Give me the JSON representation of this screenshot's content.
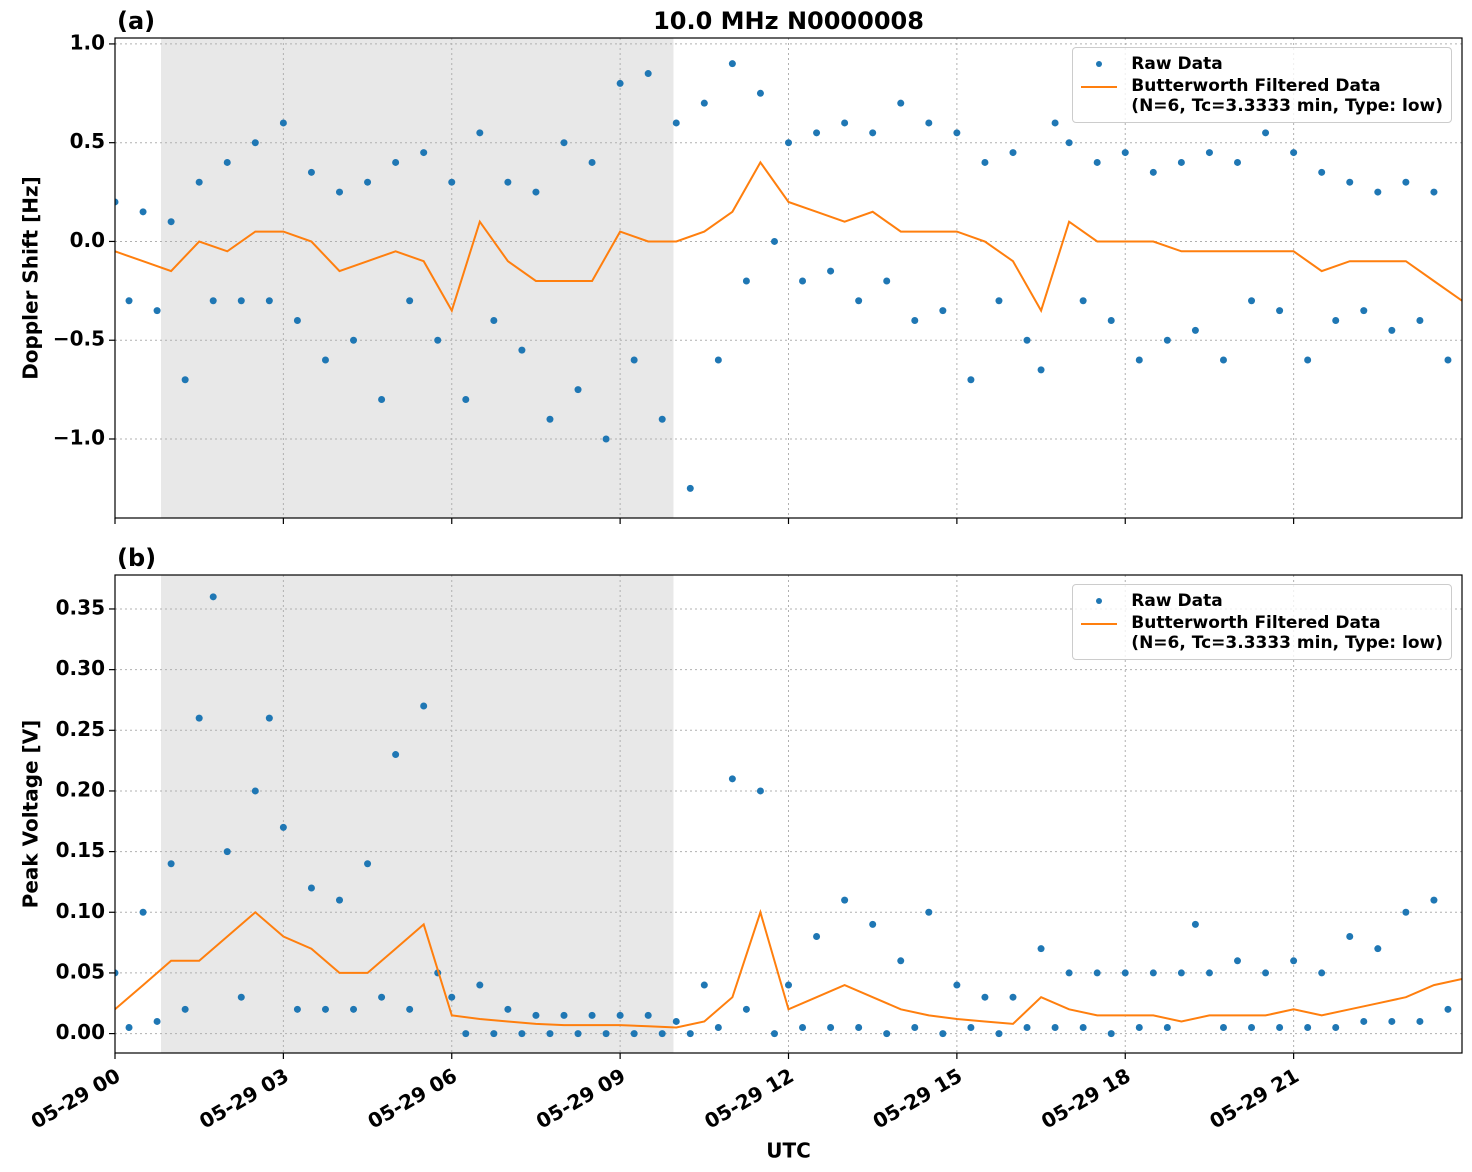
{
  "chart_data": [
    {
      "type": "timeseries",
      "title": "10.0 MHz N0000008",
      "panel_label": "(a)",
      "y_label": "Doppler Shift [Hz]",
      "xlim": [
        0,
        24
      ],
      "ylim": [
        -1.4,
        1.03
      ],
      "xticks": [
        0,
        3,
        6,
        9,
        12,
        15,
        18,
        21
      ],
      "show_xtick_labels": false,
      "yticks": [
        {
          "value": -1.0,
          "label": "−1.0"
        },
        {
          "value": -0.5,
          "label": "−0.5"
        },
        {
          "value": 0,
          "label": "0.0"
        },
        0.5,
        {
          "value": 1.0,
          "label": "1.0"
        }
      ],
      "grid": true,
      "legend": "upper right",
      "shade": [
        0.82,
        9.95
      ],
      "shade_color": "#e8e8e8",
      "series": [
        {
          "name": "Raw Data",
          "kind": "scatter",
          "color": "#1f77b4",
          "x": [
            0,
            0.25,
            0.5,
            0.75,
            1,
            1.25,
            1.5,
            1.75,
            2,
            2.25,
            2.5,
            2.75,
            3,
            3.25,
            3.5,
            3.75,
            4,
            4.25,
            4.5,
            4.75,
            5,
            5.25,
            5.5,
            5.75,
            6,
            6.25,
            6.5,
            6.75,
            7,
            7.25,
            7.5,
            7.75,
            8,
            8.25,
            8.5,
            8.75,
            9,
            9.25,
            9.5,
            9.75,
            10,
            10.25,
            10.5,
            10.75,
            11,
            11.25,
            11.5,
            11.75,
            12,
            12.25,
            12.5,
            12.75,
            13,
            13.25,
            13.5,
            13.75,
            14,
            14.25,
            14.5,
            14.75,
            15,
            15.25,
            15.5,
            15.75,
            16,
            16.25,
            16.5,
            16.75,
            17,
            17.25,
            17.5,
            17.75,
            18,
            18.25,
            18.5,
            18.75,
            19,
            19.25,
            19.5,
            19.75,
            20,
            20.25,
            20.5,
            20.75,
            21,
            21.25,
            21.5,
            21.75,
            22,
            22.25,
            22.5,
            22.75,
            23,
            23.25,
            23.5,
            23.75
          ],
          "values": [
            0.2,
            -0.3,
            0.15,
            -0.35,
            0.1,
            -0.7,
            0.3,
            -0.3,
            0.4,
            -0.3,
            0.5,
            -0.3,
            0.6,
            -0.4,
            0.35,
            -0.6,
            0.25,
            -0.5,
            0.3,
            -0.8,
            0.4,
            -0.3,
            0.45,
            -0.5,
            0.3,
            -0.8,
            0.55,
            -0.4,
            0.3,
            -0.55,
            0.25,
            -0.9,
            0.5,
            -0.75,
            0.4,
            -1.0,
            0.8,
            -0.6,
            0.85,
            -0.9,
            0.6,
            -1.25,
            0.7,
            -0.6,
            0.9,
            -0.2,
            0.75,
            0.0,
            0.5,
            -0.2,
            0.55,
            -0.15,
            0.6,
            -0.3,
            0.55,
            -0.2,
            0.7,
            -0.4,
            0.6,
            -0.35,
            0.55,
            -0.7,
            0.4,
            -0.3,
            0.45,
            -0.5,
            -0.65,
            0.6,
            0.5,
            -0.3,
            0.4,
            -0.4,
            0.45,
            -0.6,
            0.35,
            -0.5,
            0.4,
            -0.45,
            0.45,
            -0.6,
            0.4,
            -0.3,
            0.55,
            -0.35,
            0.45,
            -0.6,
            0.35,
            -0.4,
            0.3,
            -0.35,
            0.25,
            -0.45,
            0.3,
            -0.4,
            0.25,
            -0.6
          ]
        },
        {
          "name": "Butterworth Filtered Data\n(N=6, Tc=3.3333 min, Type: low)",
          "kind": "line",
          "color": "#ff7f0e",
          "x": [
            0,
            0.5,
            1,
            1.5,
            2,
            2.5,
            3,
            3.5,
            4,
            4.5,
            5,
            5.5,
            6,
            6.5,
            7,
            7.5,
            8,
            8.5,
            9,
            9.5,
            10,
            10.5,
            11,
            11.5,
            12,
            12.5,
            13,
            13.5,
            14,
            14.5,
            15,
            15.5,
            16,
            16.5,
            17,
            17.5,
            18,
            18.5,
            19,
            19.5,
            20,
            20.5,
            21,
            21.5,
            22,
            22.5,
            23,
            23.5,
            24
          ],
          "values": [
            -0.05,
            -0.1,
            -0.15,
            0.0,
            -0.05,
            0.05,
            0.05,
            0.0,
            -0.15,
            -0.1,
            -0.05,
            -0.1,
            -0.35,
            0.1,
            -0.1,
            -0.2,
            -0.2,
            -0.2,
            0.05,
            0.0,
            0.0,
            0.05,
            0.15,
            0.4,
            0.2,
            0.15,
            0.1,
            0.15,
            0.05,
            0.05,
            0.05,
            0.0,
            -0.1,
            -0.35,
            0.1,
            0.0,
            0.0,
            0.0,
            -0.05,
            -0.05,
            -0.05,
            -0.05,
            -0.05,
            -0.15,
            -0.1,
            -0.1,
            -0.1,
            -0.2,
            -0.3
          ]
        }
      ]
    },
    {
      "type": "timeseries",
      "panel_label": "(b)",
      "y_label": "Peak Voltage [V]",
      "x_label": "UTC",
      "xlim": [
        0,
        24
      ],
      "ylim": [
        -0.016,
        0.378
      ],
      "xticks": [
        {
          "value": 0,
          "label": "05-29 00"
        },
        {
          "value": 3,
          "label": "05-29 03"
        },
        {
          "value": 6,
          "label": "05-29 06"
        },
        {
          "value": 9,
          "label": "05-29 09"
        },
        {
          "value": 12,
          "label": "05-29 12"
        },
        {
          "value": 15,
          "label": "05-29 15"
        },
        {
          "value": 18,
          "label": "05-29 18"
        },
        {
          "value": 21,
          "label": "05-29 21"
        }
      ],
      "show_xtick_labels": true,
      "yticks": [
        {
          "value": 0,
          "label": "0.00"
        },
        0.05,
        {
          "value": 0.1,
          "label": "0.10"
        },
        0.15,
        {
          "value": 0.2,
          "label": "0.20"
        },
        0.25,
        {
          "value": 0.3,
          "label": "0.30"
        },
        0.35
      ],
      "grid": true,
      "legend": "upper right",
      "shade": [
        0.82,
        9.95
      ],
      "shade_color": "#e8e8e8",
      "series": [
        {
          "name": "Raw Data",
          "kind": "scatter",
          "color": "#1f77b4",
          "x": [
            0,
            0.25,
            0.5,
            0.75,
            1,
            1.25,
            1.5,
            1.75,
            2,
            2.25,
            2.5,
            2.75,
            3,
            3.25,
            3.5,
            3.75,
            4,
            4.25,
            4.5,
            4.75,
            5,
            5.25,
            5.5,
            5.75,
            6,
            6.25,
            6.5,
            6.75,
            7,
            7.25,
            7.5,
            7.75,
            8,
            8.25,
            8.5,
            8.75,
            9,
            9.25,
            9.5,
            9.75,
            10,
            10.25,
            10.5,
            10.75,
            11,
            11.25,
            11.5,
            11.75,
            12,
            12.25,
            12.5,
            12.75,
            13,
            13.25,
            13.5,
            13.75,
            14,
            14.25,
            14.5,
            14.75,
            15,
            15.25,
            15.5,
            15.75,
            16,
            16.25,
            16.5,
            16.75,
            17,
            17.25,
            17.5,
            17.75,
            18,
            18.25,
            18.5,
            18.75,
            19,
            19.25,
            19.5,
            19.75,
            20,
            20.25,
            20.5,
            20.75,
            21,
            21.25,
            21.5,
            21.75,
            22,
            22.25,
            22.5,
            22.75,
            23,
            23.25,
            23.5,
            23.75
          ],
          "values": [
            0.05,
            0.005,
            0.1,
            0.01,
            0.14,
            0.02,
            0.26,
            0.36,
            0.15,
            0.03,
            0.2,
            0.26,
            0.17,
            0.02,
            0.12,
            0.02,
            0.11,
            0.02,
            0.14,
            0.03,
            0.23,
            0.02,
            0.27,
            0.05,
            0.03,
            0.0,
            0.04,
            0.0,
            0.02,
            0.0,
            0.015,
            0.0,
            0.015,
            0.0,
            0.015,
            0.0,
            0.015,
            0.0,
            0.015,
            0.0,
            0.01,
            0.0,
            0.04,
            0.005,
            0.21,
            0.02,
            0.2,
            0.0,
            0.04,
            0.005,
            0.08,
            0.005,
            0.11,
            0.005,
            0.09,
            0.0,
            0.06,
            0.005,
            0.1,
            0.0,
            0.04,
            0.005,
            0.03,
            0.0,
            0.03,
            0.005,
            0.07,
            0.005,
            0.05,
            0.005,
            0.05,
            0.0,
            0.05,
            0.005,
            0.05,
            0.005,
            0.05,
            0.09,
            0.05,
            0.005,
            0.06,
            0.005,
            0.05,
            0.005,
            0.06,
            0.005,
            0.05,
            0.005,
            0.08,
            0.01,
            0.07,
            0.01,
            0.1,
            0.01,
            0.11,
            0.02
          ]
        },
        {
          "name": "Butterworth Filtered Data\n(N=6, Tc=3.3333 min, Type: low)",
          "kind": "line",
          "color": "#ff7f0e",
          "x": [
            0,
            0.5,
            1,
            1.5,
            2,
            2.5,
            3,
            3.5,
            4,
            4.5,
            5,
            5.5,
            6,
            6.5,
            7,
            7.5,
            8,
            8.5,
            9,
            9.5,
            10,
            10.5,
            11,
            11.5,
            12,
            12.5,
            13,
            13.5,
            14,
            14.5,
            15,
            15.5,
            16,
            16.5,
            17,
            17.5,
            18,
            18.5,
            19,
            19.5,
            20,
            20.5,
            21,
            21.5,
            22,
            22.5,
            23,
            23.5,
            24
          ],
          "values": [
            0.02,
            0.04,
            0.06,
            0.06,
            0.08,
            0.1,
            0.08,
            0.07,
            0.05,
            0.05,
            0.07,
            0.09,
            0.015,
            0.012,
            0.01,
            0.008,
            0.007,
            0.007,
            0.007,
            0.006,
            0.005,
            0.01,
            0.03,
            0.1,
            0.02,
            0.03,
            0.04,
            0.03,
            0.02,
            0.015,
            0.012,
            0.01,
            0.008,
            0.03,
            0.02,
            0.015,
            0.015,
            0.015,
            0.01,
            0.015,
            0.015,
            0.015,
            0.02,
            0.015,
            0.02,
            0.025,
            0.03,
            0.04,
            0.045
          ]
        }
      ]
    }
  ]
}
